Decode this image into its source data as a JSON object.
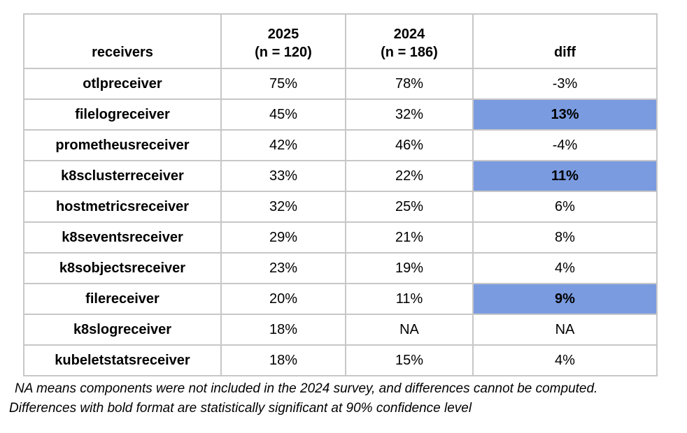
{
  "chart_data": {
    "type": "table",
    "columns": [
      {
        "key": "receiver",
        "lines": [
          "receivers"
        ]
      },
      {
        "key": "y2025",
        "lines": [
          "2025",
          "(n = 120)"
        ]
      },
      {
        "key": "y2024",
        "lines": [
          "2024",
          "(n = 186)"
        ]
      },
      {
        "key": "diff",
        "lines": [
          "diff"
        ]
      }
    ],
    "rows": [
      {
        "receiver": "otlpreceiver",
        "y2025": "75%",
        "y2024": "78%",
        "diff": "-3%",
        "diff_significant": false
      },
      {
        "receiver": "filelogreceiver",
        "y2025": "45%",
        "y2024": "32%",
        "diff": "13%",
        "diff_significant": true
      },
      {
        "receiver": "prometheusreceiver",
        "y2025": "42%",
        "y2024": "46%",
        "diff": "-4%",
        "diff_significant": false
      },
      {
        "receiver": "k8sclusterreceiver",
        "y2025": "33%",
        "y2024": "22%",
        "diff": "11%",
        "diff_significant": true
      },
      {
        "receiver": "hostmetricsreceiver",
        "y2025": "32%",
        "y2024": "25%",
        "diff": "6%",
        "diff_significant": false
      },
      {
        "receiver": "k8seventsreceiver",
        "y2025": "29%",
        "y2024": "21%",
        "diff": "8%",
        "diff_significant": false
      },
      {
        "receiver": "k8sobjectsreceiver",
        "y2025": "23%",
        "y2024": "19%",
        "diff": "4%",
        "diff_significant": false
      },
      {
        "receiver": "filereceiver",
        "y2025": "20%",
        "y2024": "11%",
        "diff": "9%",
        "diff_significant": true
      },
      {
        "receiver": "k8slogreceiver",
        "y2025": "18%",
        "y2024": "NA",
        "diff": "NA",
        "diff_significant": false
      },
      {
        "receiver": "kubeletstatsreceiver",
        "y2025": "18%",
        "y2024": "15%",
        "diff": "4%",
        "diff_significant": false
      }
    ],
    "notes": [
      "NA means components were not included in the 2024 survey, and differences cannot be computed.",
      "Differences with bold format are statistically significant at 90% confidence level"
    ]
  },
  "colors": {
    "significant_highlight": "#7a9be0",
    "grid_border": "#c7c7c7",
    "text": "#000000",
    "background": "#ffffff"
  }
}
